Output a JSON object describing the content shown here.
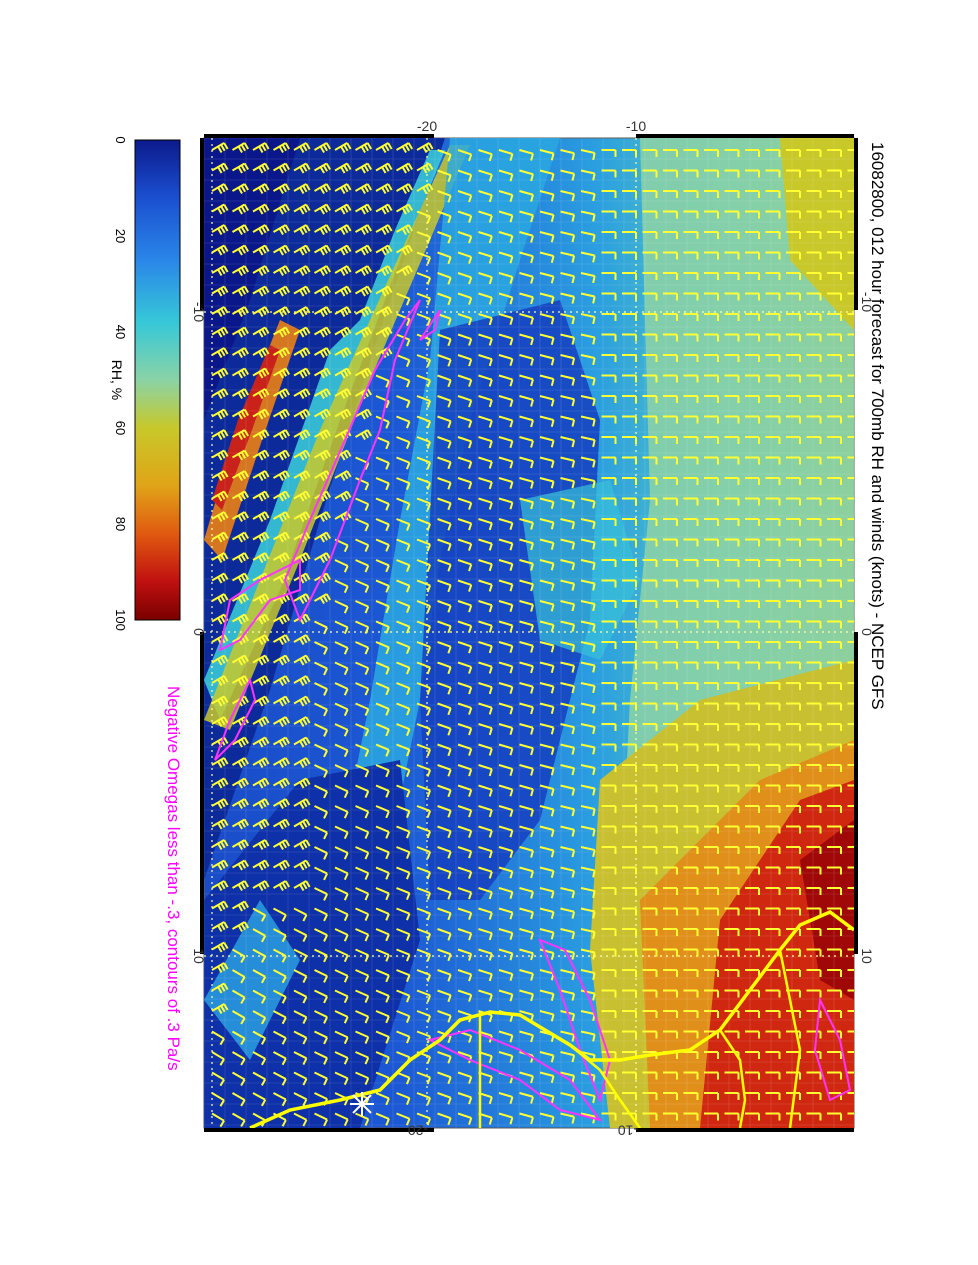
{
  "title": "16082800, 012 hour forecast for 700mb RH and winds (knots) - NCEP GFS",
  "subtitle": "Negative Omegas less than -.3, contours of .3 Pa/s",
  "colorbar": {
    "label": "RH, %",
    "ticks": [
      "0",
      "20",
      "40",
      "60",
      "80",
      "100"
    ],
    "stops": [
      "#0c1a8c",
      "#1a4fd0",
      "#2a86e8",
      "#36c8d8",
      "#8ad3a6",
      "#c8c82a",
      "#e0a418",
      "#e05a10",
      "#c01010",
      "#7a0000"
    ]
  },
  "map": {
    "top_axis_ticks": [
      "-20",
      "-10"
    ],
    "bottom_axis_ticks": [
      "-20",
      "-10"
    ],
    "left_axis_ticks": [
      "-10",
      "0",
      "10"
    ],
    "right_axis_ticks": [
      "-10",
      "0",
      "10"
    ],
    "colors": {
      "wind_barbs": "#ffff33",
      "omega_contours": "#ff33ff",
      "coastline": "#ffff00",
      "grid": "#ffffaa"
    }
  }
}
